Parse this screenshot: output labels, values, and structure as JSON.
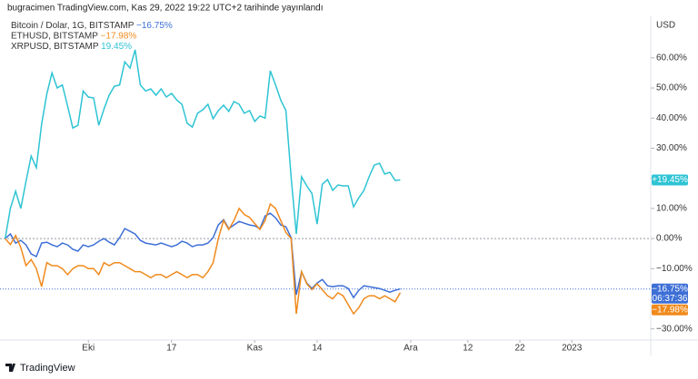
{
  "header": "bugracimen TradingView.com, Kas 29, 2022 19:22 UTC+2 tarihinde yayınlandı",
  "brand": "TradingView",
  "chart_data": {
    "type": "line",
    "y_axis_label": "USD",
    "countdown": "06:37:36",
    "baseline": 0,
    "x": [
      0,
      1,
      2,
      3,
      4,
      5,
      6,
      7,
      8,
      9,
      10,
      11,
      12,
      13,
      14,
      15,
      16,
      17,
      18,
      19,
      20,
      21,
      22,
      23,
      24,
      25,
      26,
      27,
      28,
      29,
      30,
      31,
      32,
      33,
      34,
      35,
      36,
      37,
      38,
      39,
      40,
      41,
      42,
      43,
      44,
      45,
      46,
      47,
      48,
      49,
      50,
      51,
      52,
      53,
      54,
      55,
      56,
      57,
      58,
      59,
      60,
      61,
      62,
      63,
      64,
      65,
      66,
      67,
      68,
      69,
      70,
      71,
      72,
      73,
      74,
      75,
      76
    ],
    "xlim": [
      -1,
      124
    ],
    "xticks": [
      {
        "value": 16,
        "label": "Eki"
      },
      {
        "value": 32,
        "label": "17"
      },
      {
        "value": 48,
        "label": "Kas"
      },
      {
        "value": 60,
        "label": "14"
      },
      {
        "value": 78,
        "label": "Ara"
      },
      {
        "value": 89,
        "label": "12"
      },
      {
        "value": 99,
        "label": "22"
      },
      {
        "value": 109,
        "label": "2023"
      }
    ],
    "ylim": [
      -33.7,
      73.2
    ],
    "yticks": [
      {
        "value": 60,
        "label": "60.00%"
      },
      {
        "value": 50,
        "label": "50.00%"
      },
      {
        "value": 40,
        "label": "40.00%"
      },
      {
        "value": 30,
        "label": "30.00%"
      },
      {
        "value": 20,
        "label": "20.00%"
      },
      {
        "value": 10,
        "label": "10.00%"
      },
      {
        "value": 0,
        "label": "0.00%"
      },
      {
        "value": -10,
        "label": "−10.00%"
      },
      {
        "value": -30,
        "label": "−30.00%"
      }
    ],
    "series": [
      {
        "name": "Bitcoin / Dolar, 1G, BITSTAMP",
        "legend_value": "−16.75%",
        "last_value_label": "−16.75%",
        "color": "#3d6fd6",
        "values": [
          0,
          1.5,
          -1.5,
          -0.6,
          -2.1,
          -5.1,
          -6,
          -1.5,
          -1.2,
          -2.1,
          -2.7,
          -1.5,
          -2.1,
          -3.6,
          -4.2,
          -2.1,
          -2.7,
          -2.1,
          -0.9,
          0,
          -1.2,
          -2.1,
          0.3,
          3.3,
          2.4,
          1.5,
          -0.6,
          -1.5,
          -1.8,
          -2.1,
          -1.5,
          -2.1,
          -2.7,
          -2.1,
          -0.9,
          -1.5,
          -2.7,
          -2.1,
          -2.1,
          -1.5,
          0.3,
          4.5,
          6.3,
          3.3,
          4.5,
          5.7,
          5.1,
          4.5,
          4.2,
          3.3,
          7.5,
          8.4,
          6.9,
          4.5,
          3.9,
          0.3,
          -18.7,
          -11.1,
          -14.8,
          -16.6,
          -14.8,
          -13.6,
          -15.7,
          -16,
          -15.7,
          -15.7,
          -16.6,
          -19.6,
          -17.2,
          -15.7,
          -16,
          -16.3,
          -16.6,
          -17.2,
          -17.8,
          -17.2,
          -16.75
        ]
      },
      {
        "name": "ETHUSD, BITSTAMP",
        "legend_value": "−17.98%",
        "last_value_label": "−17.98%",
        "color": "#f08a1c",
        "values": [
          0,
          -2,
          1,
          -3,
          -9,
          -7,
          -10,
          -16,
          -8,
          -9,
          -9,
          -10,
          -12,
          -10,
          -9,
          -9,
          -10,
          -10,
          -12,
          -8,
          -9,
          -8,
          -8,
          -9,
          -10,
          -11,
          -11,
          -12,
          -13,
          -12,
          -12,
          -13,
          -12,
          -11,
          -12,
          -13,
          -12,
          -12,
          -13,
          -11,
          -8,
          0,
          6,
          3,
          6,
          10,
          8,
          7,
          5,
          3,
          6,
          11.5,
          10,
          6,
          2,
          0,
          -25,
          -11,
          -15,
          -17,
          -15,
          -17,
          -19,
          -20,
          -18,
          -19,
          -22,
          -25,
          -23,
          -20,
          -19,
          -19,
          -20,
          -19,
          -20,
          -21,
          -17.98
        ]
      },
      {
        "name": "XRPUSD, BITSTAMP",
        "legend_value": "19.45%",
        "last_value_label": "+19.45%",
        "color": "#2ec4d4",
        "values": [
          0,
          10,
          15.7,
          10,
          19,
          27.4,
          23.5,
          38,
          48,
          55,
          50,
          51,
          44,
          36.7,
          37.6,
          49,
          47,
          46.7,
          37.6,
          43,
          47.6,
          50.6,
          51,
          58.7,
          56.6,
          62.7,
          51,
          49,
          49.7,
          47.6,
          49.7,
          47,
          48.2,
          46,
          44.6,
          38.3,
          37,
          41.6,
          42.8,
          44.6,
          39.8,
          42.5,
          44.3,
          42.2,
          45.5,
          44.6,
          41.6,
          42.5,
          38.9,
          40.7,
          40,
          55.7,
          51,
          46,
          42.5,
          20.5,
          1.5,
          20.5,
          17.5,
          15,
          4.8,
          18,
          19.6,
          16,
          17.8,
          17.5,
          17.5,
          10.5,
          13.5,
          16,
          20.5,
          24.4,
          25,
          21.4,
          22,
          19.3,
          19.45
        ]
      }
    ]
  }
}
